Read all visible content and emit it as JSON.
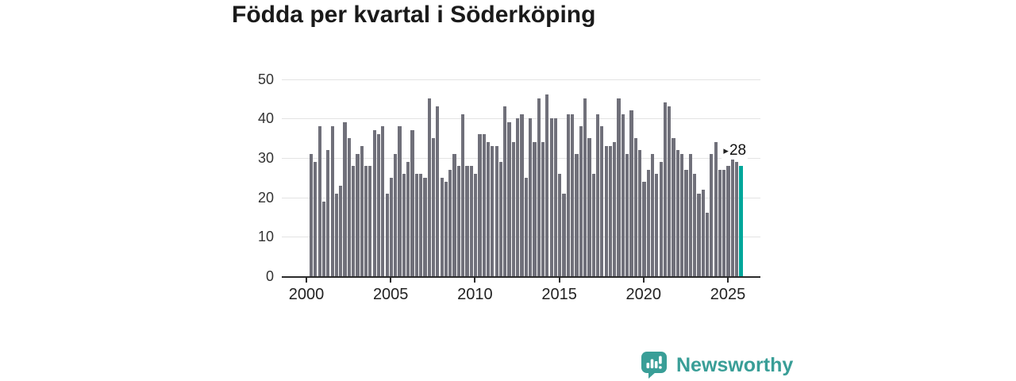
{
  "title": "Födda per kvartal i Söderköping",
  "annotation": {
    "marker": "▸",
    "label": "28"
  },
  "brand": {
    "name": "Newsworthy"
  },
  "colors": {
    "bar": "#70707A",
    "highlight": "#00A79B",
    "grid": "#E3E3E3",
    "axis": "#2B2B2B",
    "tick_text": "#333333",
    "title_text": "#1A1A1A",
    "brand_teal": "#399E97"
  },
  "chart_data": {
    "type": "bar",
    "title": "Födda per kvartal i Söderköping",
    "xlabel": "",
    "ylabel": "",
    "start": "2000-Q1",
    "end": "2025-Q3",
    "x_ticks": [
      2000,
      2005,
      2010,
      2015,
      2020,
      2025
    ],
    "y_ticks": [
      0,
      10,
      20,
      30,
      40,
      50
    ],
    "ylim": [
      0,
      50
    ],
    "grid": true,
    "legend": false,
    "highlight": {
      "quarter": "2025-Q3",
      "value": 28,
      "label": "28"
    },
    "years": [
      {
        "year": 2000,
        "values": [
          31,
          29,
          38,
          19
        ]
      },
      {
        "year": 2001,
        "values": [
          32,
          38,
          21,
          23
        ]
      },
      {
        "year": 2002,
        "values": [
          39,
          35,
          28,
          31
        ]
      },
      {
        "year": 2003,
        "values": [
          33,
          28,
          28,
          37
        ]
      },
      {
        "year": 2004,
        "values": [
          36,
          38,
          21,
          25
        ]
      },
      {
        "year": 2005,
        "values": [
          31,
          38,
          26,
          29
        ]
      },
      {
        "year": 2006,
        "values": [
          37,
          26,
          26,
          25
        ]
      },
      {
        "year": 2007,
        "values": [
          45,
          35,
          43,
          25
        ]
      },
      {
        "year": 2008,
        "values": [
          24,
          27,
          31,
          28
        ]
      },
      {
        "year": 2009,
        "values": [
          41,
          28,
          28,
          26
        ]
      },
      {
        "year": 2010,
        "values": [
          36,
          36,
          34,
          33
        ]
      },
      {
        "year": 2011,
        "values": [
          33,
          29,
          43,
          39
        ]
      },
      {
        "year": 2012,
        "values": [
          34,
          40,
          41,
          25
        ]
      },
      {
        "year": 2013,
        "values": [
          40,
          34,
          45,
          34
        ]
      },
      {
        "year": 2014,
        "values": [
          46,
          40,
          40,
          26
        ]
      },
      {
        "year": 2015,
        "values": [
          21,
          41,
          41,
          31
        ]
      },
      {
        "year": 2016,
        "values": [
          38,
          45,
          35,
          26
        ]
      },
      {
        "year": 2017,
        "values": [
          41,
          38,
          33,
          33
        ]
      },
      {
        "year": 2018,
        "values": [
          34,
          45,
          41,
          31
        ]
      },
      {
        "year": 2019,
        "values": [
          42,
          35,
          32,
          24
        ]
      },
      {
        "year": 2020,
        "values": [
          27,
          31,
          26,
          29
        ]
      },
      {
        "year": 2021,
        "values": [
          44,
          43,
          35,
          32
        ]
      },
      {
        "year": 2022,
        "values": [
          31,
          27,
          31,
          26
        ]
      },
      {
        "year": 2023,
        "values": [
          21,
          22,
          16,
          31
        ]
      },
      {
        "year": 2024,
        "values": [
          34,
          27,
          27,
          28
        ]
      },
      {
        "year": 2025,
        "values": [
          30,
          29,
          28
        ]
      }
    ]
  }
}
